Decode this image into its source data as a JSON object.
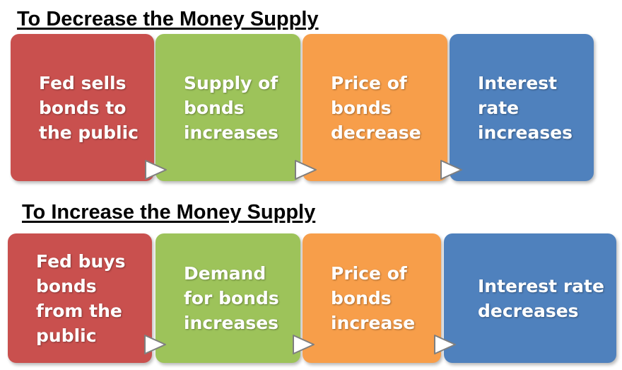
{
  "colors": {
    "red": "#c9504e",
    "green": "#9dc35a",
    "orange": "#f79e4a",
    "blue": "#4f81bd"
  },
  "sections": [
    {
      "title": "To Decrease the Money Supply",
      "steps": [
        {
          "text": "Fed sells\nbonds to\nthe public",
          "color": "red"
        },
        {
          "text": "Supply of\nbonds\nincreases",
          "color": "green"
        },
        {
          "text": "Price of\nbonds\ndecrease",
          "color": "orange"
        },
        {
          "text": "Interest\nrate\nincreases",
          "color": "blue"
        }
      ]
    },
    {
      "title": "To Increase the Money Supply",
      "steps": [
        {
          "text": "Fed buys\nbonds\nfrom the\npublic",
          "color": "red"
        },
        {
          "text": "Demand\nfor bonds\nincreases",
          "color": "green"
        },
        {
          "text": "Price of\nbonds\nincrease",
          "color": "orange"
        },
        {
          "text": "Interest rate\ndecreases",
          "color": "blue"
        }
      ]
    }
  ],
  "arrow_icon": "chevron-right-triangle-icon"
}
